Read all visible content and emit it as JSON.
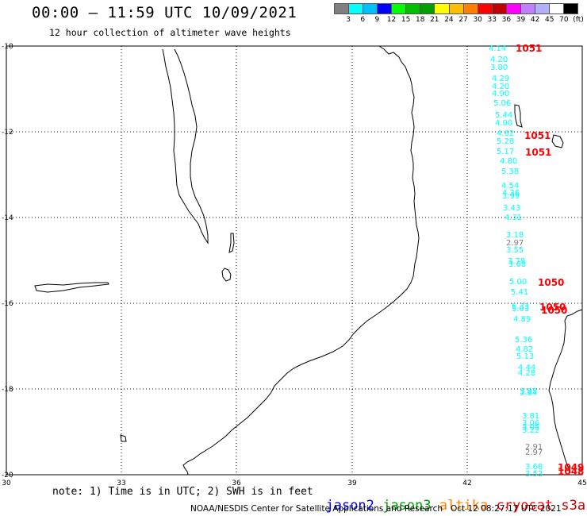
{
  "header": {
    "title": "00:00 – 11:59 UTC 10/09/2021",
    "subtitle": "12 hour collection of altimeter wave heights"
  },
  "legend": {
    "colors": [
      "#7f7f7f",
      "#00ffff",
      "#00bfff",
      "#0000ff",
      "#00ff00",
      "#00bf00",
      "#009f00",
      "#ffff00",
      "#ffbf00",
      "#ff8000",
      "#ff0000",
      "#bf0000",
      "#ff00ff",
      "#c080ff",
      "#b0b0ff",
      "#ffffff",
      "#000000"
    ],
    "labels": [
      "3",
      "6",
      "9",
      "12",
      "15",
      "18",
      "21",
      "24",
      "27",
      "30",
      "33",
      "36",
      "39",
      "42",
      "45",
      "70",
      "(ft)"
    ]
  },
  "map": {
    "lat_ticks": [
      "-10",
      "-12",
      "-14",
      "-16",
      "-18",
      "-20"
    ],
    "lon_ticks": [
      "30",
      "33",
      "36",
      "39",
      "42",
      "45"
    ],
    "observations": [
      {
        "v": "4.14",
        "c": "#00ffff"
      },
      {
        "v": "4.20",
        "c": "#00ffff"
      },
      {
        "v": "3.80",
        "c": "#00ffff"
      },
      {
        "v": "4.29",
        "c": "#00ffff"
      },
      {
        "v": "4.20",
        "c": "#00ffff"
      },
      {
        "v": "4.90",
        "c": "#00ffff"
      },
      {
        "v": "5.06",
        "c": "#00ffff"
      },
      {
        "v": "5.44",
        "c": "#00ffff"
      },
      {
        "v": "4.90",
        "c": "#00ffff"
      },
      {
        "v": "4.62",
        "c": "#00ffff"
      },
      {
        "v": "5.28",
        "c": "#00ffff"
      },
      {
        "v": "5.17",
        "c": "#00ffff"
      },
      {
        "v": "4.80",
        "c": "#00ffff"
      },
      {
        "v": "5.38",
        "c": "#00ffff"
      },
      {
        "v": "4.54",
        "c": "#00ffff"
      },
      {
        "v": "4.36",
        "c": "#00ffff"
      },
      {
        "v": "3.99",
        "c": "#00ffff"
      },
      {
        "v": "3.43",
        "c": "#00ffff"
      },
      {
        "v": "4.31",
        "c": "#00ffff"
      },
      {
        "v": "3.18",
        "c": "#00ffff"
      },
      {
        "v": "2.97",
        "c": "#7f7f7f"
      },
      {
        "v": "3.55",
        "c": "#00ffff"
      },
      {
        "v": "3.78",
        "c": "#00ffff"
      },
      {
        "v": "3.68",
        "c": "#00ffff"
      },
      {
        "v": "5.00",
        "c": "#00ffff"
      },
      {
        "v": "5.41",
        "c": "#00ffff"
      },
      {
        "v": "5.33",
        "c": "#00ffff"
      },
      {
        "v": "5.03",
        "c": "#00ffff"
      },
      {
        "v": "4.89",
        "c": "#00ffff"
      },
      {
        "v": "5.36",
        "c": "#00ffff"
      },
      {
        "v": "4.82",
        "c": "#00ffff"
      },
      {
        "v": "5.13",
        "c": "#00ffff"
      },
      {
        "v": "4.44",
        "c": "#00ffff"
      },
      {
        "v": "4.28",
        "c": "#00ffff"
      },
      {
        "v": "3.85",
        "c": "#00ffff"
      },
      {
        "v": "3.84",
        "c": "#00ffff"
      },
      {
        "v": "3.81",
        "c": "#00ffff"
      },
      {
        "v": "3.06",
        "c": "#00ffff"
      },
      {
        "v": "3.05",
        "c": "#00ffff"
      },
      {
        "v": "3.22",
        "c": "#00ffff"
      },
      {
        "v": "2.91",
        "c": "#7f7f7f"
      },
      {
        "v": "2.97",
        "c": "#7f7f7f"
      },
      {
        "v": "3.68",
        "c": "#00ffff"
      },
      {
        "v": "3.53",
        "c": "#00ffff"
      }
    ],
    "time_labels": [
      "1051",
      "1051",
      "1051",
      "1050",
      "1050",
      "1050",
      "1049",
      "1048"
    ],
    "time_label_color": "#ff0000"
  },
  "footer": {
    "note": "note: 1) Time is in UTC; 2) SWH is in feet",
    "missions": [
      {
        "name": "jason2",
        "color": "#0000ff"
      },
      {
        "name": "jason3",
        "color": "#009f00"
      },
      {
        "name": "altika",
        "color": "#ff8000"
      },
      {
        "name": "cryosat",
        "color": "#ff0000"
      },
      {
        "name": "s3a",
        "color": "#bf0000"
      }
    ],
    "credit": "NOAA/NESDIS Center for Satellite Applications and Research   Oct 12 08:27:17 UTC 2021"
  }
}
